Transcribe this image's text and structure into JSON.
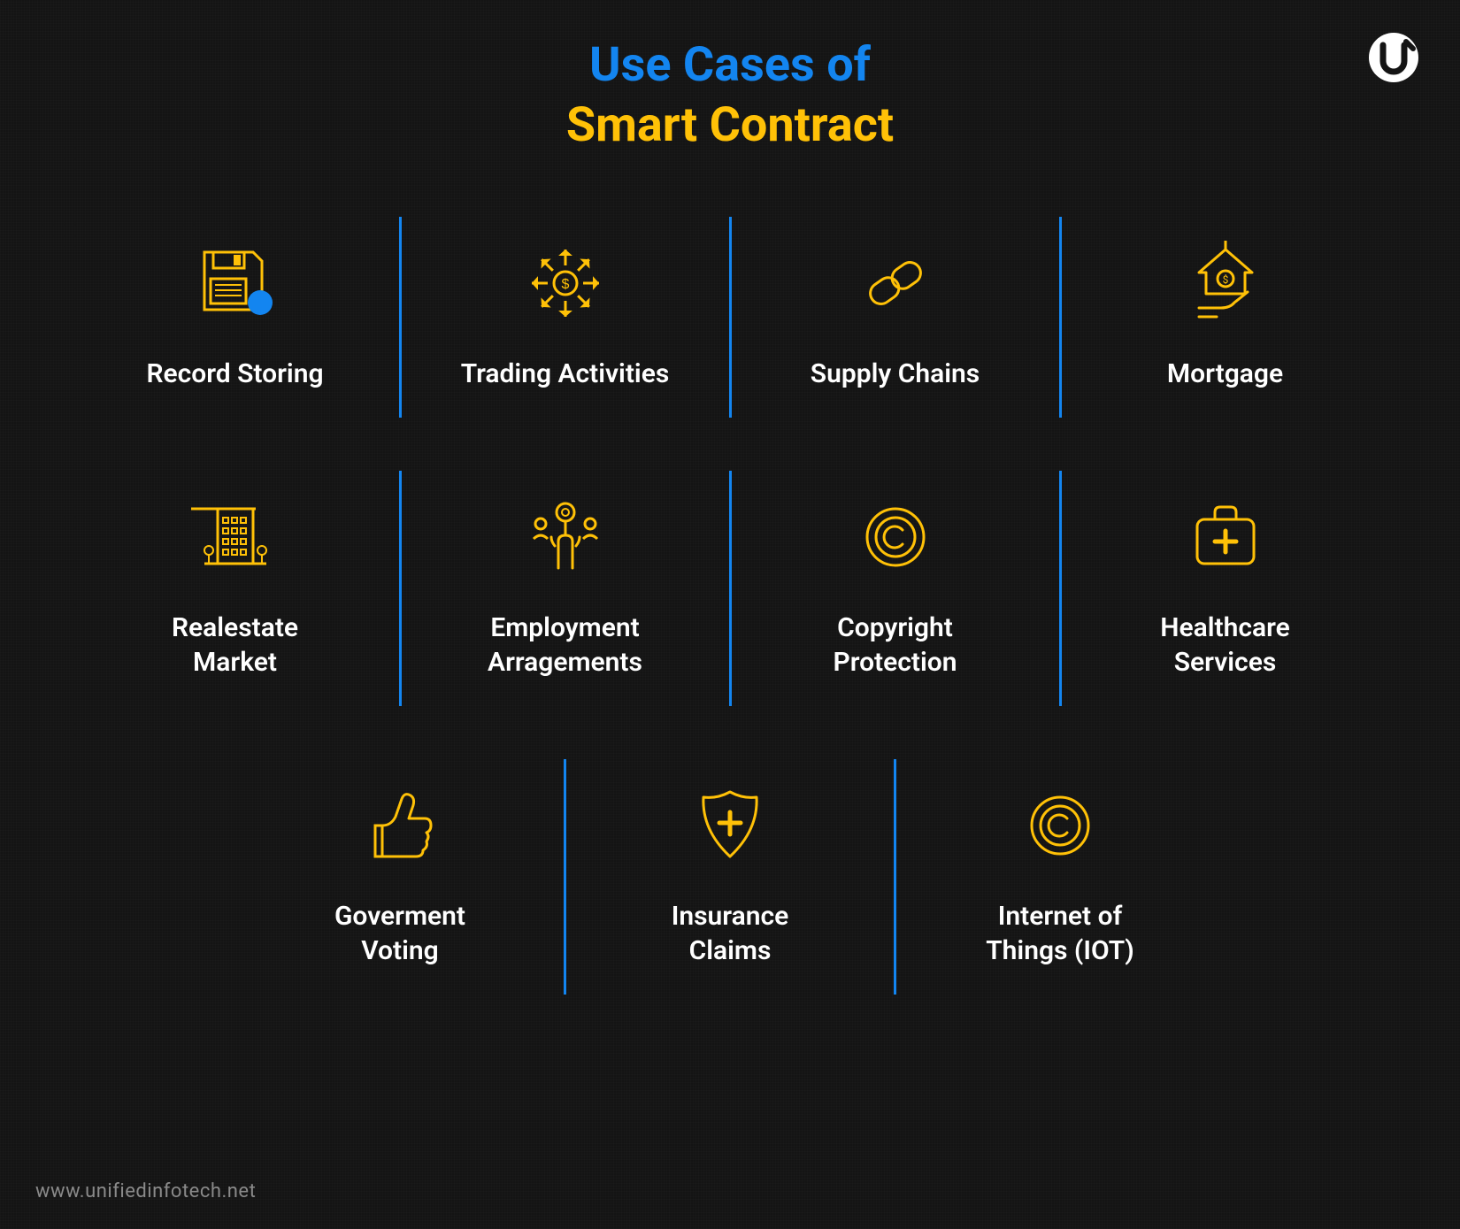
{
  "title": {
    "line1": "Use Cases of",
    "line2": "Smart Contract",
    "line1_color": "#1385f0",
    "line2_color": "#ffc107",
    "fontsize": 54,
    "fontweight": 700
  },
  "colors": {
    "background": "#141414",
    "icon_stroke": "#ffc107",
    "icon_accent": "#1385f0",
    "divider": "#1385f0",
    "label": "#ffffff",
    "footer": "#8a8a8a"
  },
  "grid": {
    "rows": [
      [
        {
          "icon": "floppy-disk",
          "label": "Record Storing"
        },
        {
          "icon": "arrows-dollar",
          "label": "Trading Activities"
        },
        {
          "icon": "chain-link",
          "label": "Supply Chains"
        },
        {
          "icon": "house-hand",
          "label": "Mortgage"
        }
      ],
      [
        {
          "icon": "building",
          "label": "Realestate\nMarket"
        },
        {
          "icon": "hand-people",
          "label": "Employment\nArragements"
        },
        {
          "icon": "copyright",
          "label": "Copyright\nProtection"
        },
        {
          "icon": "medical-kit",
          "label": "Healthcare\nServices"
        }
      ],
      [
        {
          "icon": "thumbs-up",
          "label": "Goverment\nVoting"
        },
        {
          "icon": "shield-plus",
          "label": "Insurance\nClaims"
        },
        {
          "icon": "copyright",
          "label": "Internet of\nThings (IOT)"
        }
      ]
    ],
    "label_fontsize": 30,
    "label_fontweight": 600,
    "icon_stroke_width": 3
  },
  "footer": "www.unifiedinfotech.net",
  "logo": {
    "bg": "#ffffff",
    "fg": "#141414"
  }
}
